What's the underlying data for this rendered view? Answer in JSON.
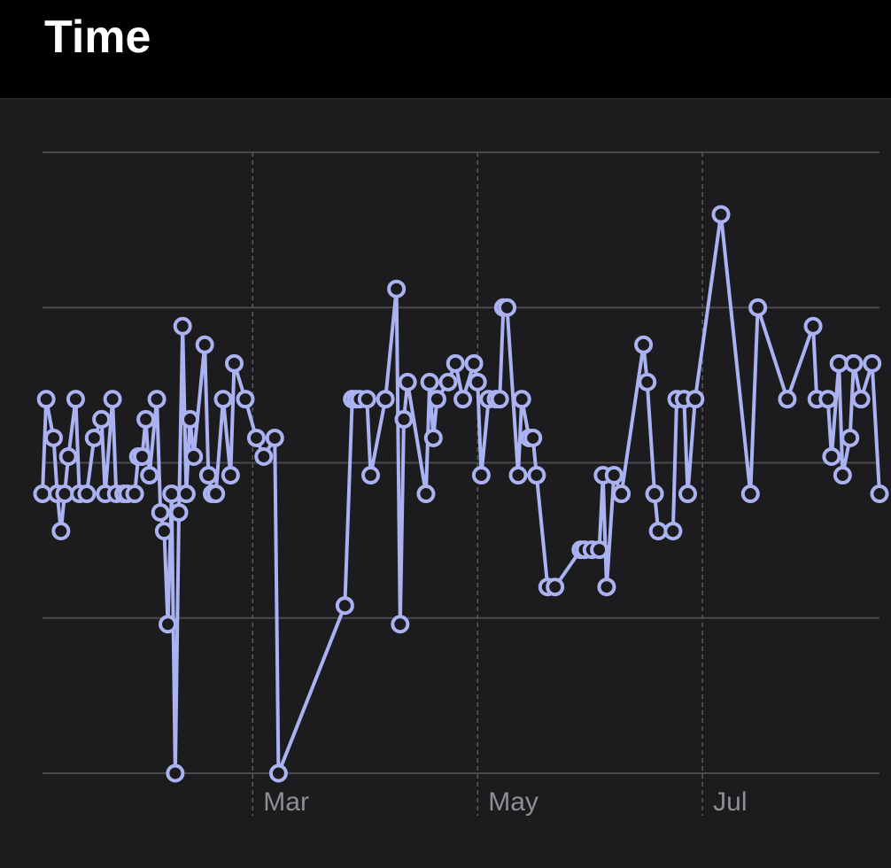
{
  "header": {
    "title": "Time"
  },
  "chart_data": {
    "type": "line",
    "color": "#aab2f2",
    "grid": true,
    "xlim": [
      -57,
      170
    ],
    "xticks": [
      {
        "value": 0,
        "label": "Mar"
      },
      {
        "value": 61,
        "label": "May"
      },
      {
        "value": 122,
        "label": "Jul"
      }
    ],
    "ylim": [
      0,
      4
    ],
    "yticks": [
      0,
      1,
      2,
      3,
      4
    ],
    "x": [
      -57,
      -56,
      -54,
      -53,
      -52,
      -51,
      -50,
      -48,
      -47,
      -45,
      -43,
      -41,
      -40,
      -38,
      -37,
      -35,
      -34,
      -32,
      -31,
      -30,
      -29,
      -28,
      -26,
      -25,
      -24,
      -23,
      -22,
      -21,
      -20,
      -19,
      -18,
      -17,
      -16,
      -13,
      -12,
      -11,
      -10,
      -8,
      -6,
      -5,
      -2,
      1,
      3,
      6,
      7,
      25,
      27,
      28,
      29,
      31,
      32,
      36,
      39,
      40,
      41,
      42,
      47,
      48,
      49,
      50,
      53,
      55,
      57,
      60,
      61,
      62,
      64,
      66,
      67,
      68,
      69,
      72,
      73,
      75,
      76,
      77,
      80,
      82,
      89,
      90,
      92,
      94,
      95,
      96,
      98,
      100,
      106,
      107,
      109,
      110,
      114,
      115,
      117,
      118,
      120,
      127,
      135,
      137,
      145,
      152,
      153,
      156,
      157,
      159,
      160,
      162,
      163,
      165,
      168,
      170
    ],
    "values": [
      1.8,
      2.41,
      2.16,
      1.8,
      1.56,
      1.8,
      2.04,
      2.41,
      1.8,
      1.8,
      2.16,
      2.28,
      1.8,
      2.41,
      1.8,
      1.8,
      1.8,
      1.8,
      2.04,
      2.04,
      2.28,
      1.92,
      2.41,
      1.68,
      1.56,
      0.96,
      1.8,
      0,
      1.68,
      2.88,
      1.8,
      2.28,
      2.04,
      2.76,
      1.92,
      1.8,
      1.8,
      2.41,
      1.92,
      2.64,
      2.41,
      2.16,
      2.04,
      2.16,
      0,
      1.08,
      2.41,
      2.41,
      2.41,
      2.41,
      1.92,
      2.41,
      3.12,
      0.96,
      2.28,
      2.52,
      1.8,
      2.52,
      2.16,
      2.41,
      2.52,
      2.64,
      2.41,
      2.64,
      2.52,
      1.92,
      2.41,
      2.41,
      2.41,
      3.0,
      3.0,
      1.92,
      2.41,
      2.16,
      2.16,
      1.92,
      1.2,
      1.2,
      1.44,
      1.44,
      1.44,
      1.44,
      1.92,
      1.2,
      1.92,
      1.8,
      2.76,
      2.52,
      1.8,
      1.56,
      1.56,
      2.41,
      2.41,
      1.8,
      2.41,
      3.6,
      1.8,
      3.0,
      2.41,
      2.88,
      2.41,
      2.41,
      2.04,
      2.64,
      1.92,
      2.16,
      2.64,
      2.41,
      2.64,
      1.8
    ]
  }
}
